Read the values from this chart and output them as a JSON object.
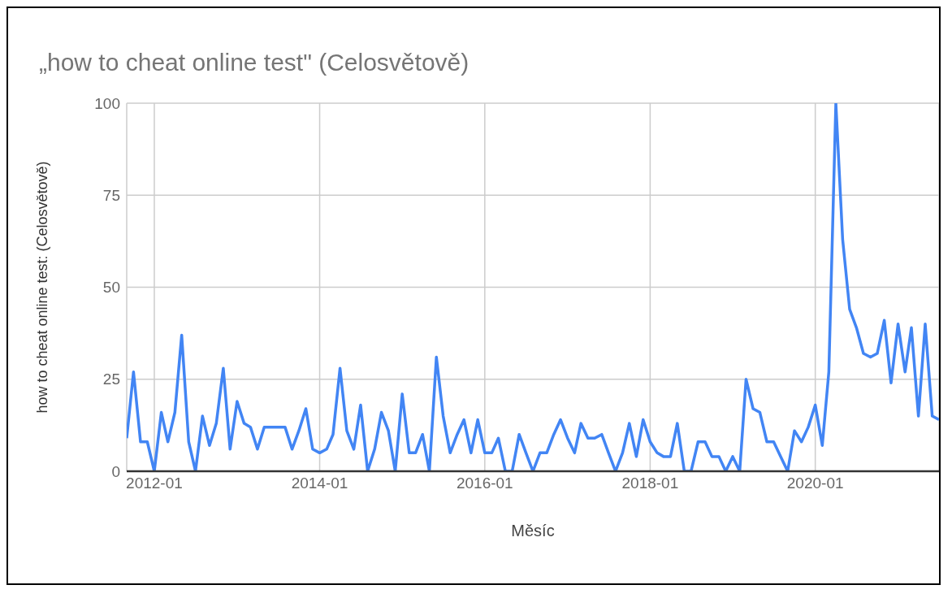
{
  "chart_data": {
    "type": "line",
    "title": "„how to cheat online test\" (Celosvětově)",
    "xlabel": "Měsíc",
    "ylabel": "how to cheat online test: (Celosvětově)",
    "x": [
      "2011-09",
      "2011-10",
      "2011-11",
      "2011-12",
      "2012-01",
      "2012-02",
      "2012-03",
      "2012-04",
      "2012-05",
      "2012-06",
      "2012-07",
      "2012-08",
      "2012-09",
      "2012-10",
      "2012-11",
      "2012-12",
      "2013-01",
      "2013-02",
      "2013-03",
      "2013-04",
      "2013-05",
      "2013-06",
      "2013-07",
      "2013-08",
      "2013-09",
      "2013-10",
      "2013-11",
      "2013-12",
      "2014-01",
      "2014-02",
      "2014-03",
      "2014-04",
      "2014-05",
      "2014-06",
      "2014-07",
      "2014-08",
      "2014-09",
      "2014-10",
      "2014-11",
      "2014-12",
      "2015-01",
      "2015-02",
      "2015-03",
      "2015-04",
      "2015-05",
      "2015-06",
      "2015-07",
      "2015-08",
      "2015-09",
      "2015-10",
      "2015-11",
      "2015-12",
      "2016-01",
      "2016-02",
      "2016-03",
      "2016-04",
      "2016-05",
      "2016-06",
      "2016-07",
      "2016-08",
      "2016-09",
      "2016-10",
      "2016-11",
      "2016-12",
      "2017-01",
      "2017-02",
      "2017-03",
      "2017-04",
      "2017-05",
      "2017-06",
      "2017-07",
      "2017-08",
      "2017-09",
      "2017-10",
      "2017-11",
      "2017-12",
      "2018-01",
      "2018-02",
      "2018-03",
      "2018-04",
      "2018-05",
      "2018-06",
      "2018-07",
      "2018-08",
      "2018-09",
      "2018-10",
      "2018-11",
      "2018-12",
      "2019-01",
      "2019-02",
      "2019-03",
      "2019-04",
      "2019-05",
      "2019-06",
      "2019-07",
      "2019-08",
      "2019-09",
      "2019-10",
      "2019-11",
      "2019-12",
      "2020-01",
      "2020-02",
      "2020-03",
      "2020-04",
      "2020-05",
      "2020-06",
      "2020-07",
      "2020-08",
      "2020-09",
      "2020-10",
      "2020-11",
      "2020-12",
      "2021-01",
      "2021-02",
      "2021-03",
      "2021-04",
      "2021-05",
      "2021-06",
      "2021-07"
    ],
    "series": [
      {
        "color": "#4285f4",
        "values": [
          9,
          27,
          8,
          8,
          0,
          16,
          8,
          16,
          37,
          8,
          0,
          15,
          7,
          13,
          28,
          6,
          19,
          13,
          12,
          6,
          12,
          12,
          12,
          12,
          6,
          11,
          17,
          6,
          5,
          6,
          10,
          28,
          11,
          6,
          18,
          0,
          6,
          16,
          11,
          0,
          21,
          5,
          5,
          10,
          0,
          31,
          15,
          5,
          10,
          14,
          5,
          14,
          5,
          5,
          9,
          0,
          0,
          10,
          5,
          0,
          5,
          5,
          10,
          14,
          9,
          5,
          13,
          9,
          9,
          10,
          5,
          0,
          5,
          13,
          4,
          14,
          8,
          5,
          4,
          4,
          13,
          0,
          0,
          8,
          8,
          4,
          4,
          0,
          4,
          0,
          25,
          17,
          16,
          8,
          8,
          4,
          0,
          11,
          8,
          12,
          18,
          7,
          27,
          100,
          63,
          44,
          39,
          32,
          31,
          32,
          41,
          24,
          40,
          27,
          39,
          15,
          40,
          15,
          14
        ]
      }
    ],
    "xlim": [
      "2011-09",
      "2021-07"
    ],
    "xticks": [
      "2012-01",
      "2014-01",
      "2016-01",
      "2018-01",
      "2020-01"
    ],
    "ylim": [
      0,
      100
    ],
    "yticks": [
      0,
      25,
      50,
      75,
      100
    ],
    "grid": true,
    "legend": false,
    "marker": "none",
    "line_style": "solid"
  }
}
